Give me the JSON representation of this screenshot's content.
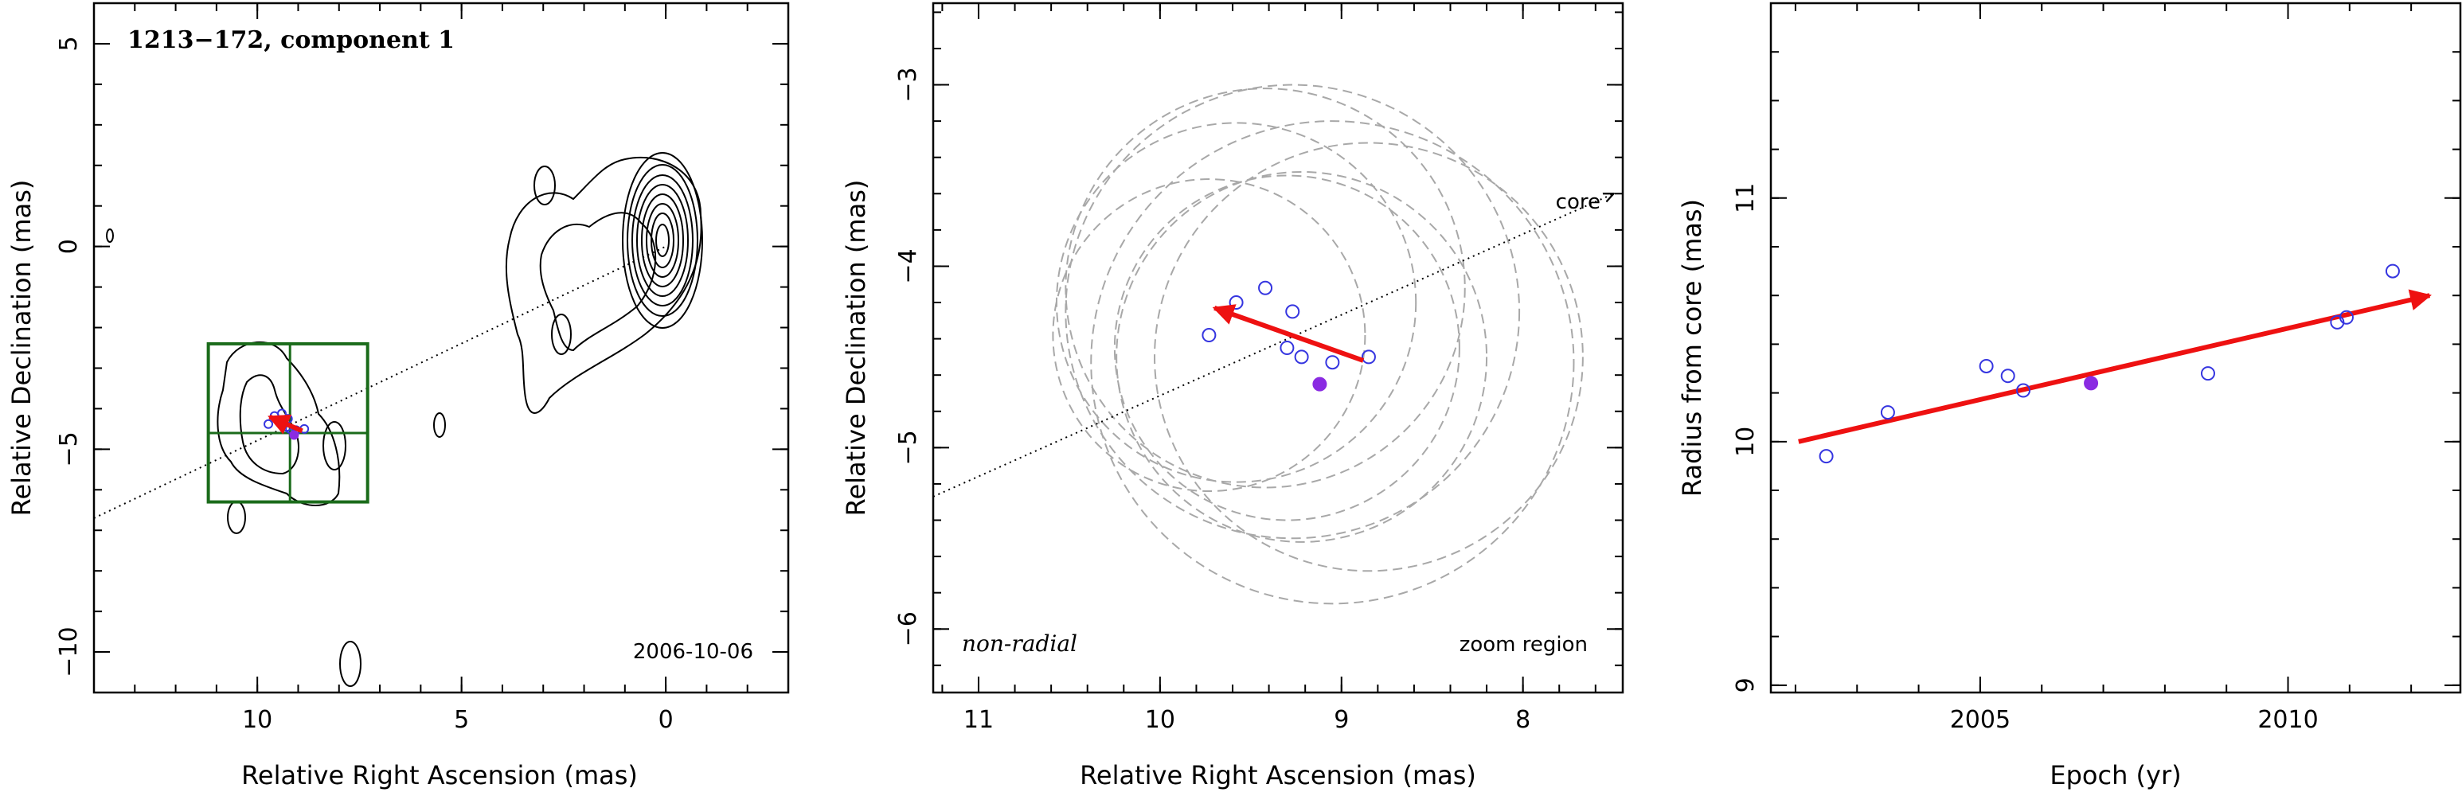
{
  "chart_data": [
    {
      "type": "scatter",
      "panel": "contour-map",
      "title": "1213−172, component 1",
      "date_label": "2006-10-06",
      "xlabel": "Relative Right Ascension (mas)",
      "ylabel": "Relative Declination (mas)",
      "xlim": [
        14,
        -3
      ],
      "ylim": [
        -11,
        6
      ],
      "xticks": [
        10,
        5,
        0
      ],
      "yticks": [
        5,
        0,
        -5,
        -10
      ],
      "core": [
        0,
        0
      ],
      "core_direction_line": {
        "from": [
          14,
          -6.7
        ],
        "to": [
          0,
          0
        ]
      },
      "zoom_box": {
        "x": [
          11.2,
          7.3
        ],
        "y": [
          -6.3,
          -2.4
        ],
        "cross": [
          9.2,
          -4.6
        ]
      },
      "points": [
        {
          "x": 9.73,
          "y": -4.38
        },
        {
          "x": 9.58,
          "y": -4.18
        },
        {
          "x": 9.4,
          "y": -4.12
        },
        {
          "x": 9.25,
          "y": -4.25
        },
        {
          "x": 9.2,
          "y": -4.5
        },
        {
          "x": 8.85,
          "y": -4.5
        },
        {
          "x": 9.05,
          "y": -4.53
        },
        {
          "x": 9.28,
          "y": -4.45
        }
      ],
      "highlight_point": {
        "x": 9.1,
        "y": -4.65
      },
      "motion_arrow": {
        "from": [
          8.9,
          -4.55
        ],
        "to": [
          9.7,
          -4.2
        ]
      },
      "colors": {
        "points": "#3535e0",
        "highlight": "#8a2be2",
        "arrow": "#ee1111",
        "box": "#1a6b1a"
      }
    },
    {
      "type": "scatter",
      "panel": "zoom-region",
      "region_label": "zoom region",
      "motion_label": "non-radial",
      "core_label": "core",
      "xlabel": "Relative Right Ascension (mas)",
      "ylabel": "Relative Declination (mas)",
      "xlim": [
        11.25,
        7.45
      ],
      "ylim": [
        -6.35,
        -2.55
      ],
      "xticks": [
        11,
        10,
        9,
        8
      ],
      "yticks": [
        -3,
        -4,
        -5,
        -6
      ],
      "points": [
        {
          "x": 9.73,
          "y": -4.38
        },
        {
          "x": 9.58,
          "y": -4.2
        },
        {
          "x": 9.42,
          "y": -4.12
        },
        {
          "x": 9.27,
          "y": -4.25
        },
        {
          "x": 9.22,
          "y": -4.5
        },
        {
          "x": 8.85,
          "y": -4.5
        },
        {
          "x": 9.05,
          "y": -4.53
        },
        {
          "x": 9.3,
          "y": -4.45
        }
      ],
      "highlight_point": {
        "x": 9.12,
        "y": -4.65
      },
      "motion_arrow": {
        "from": [
          8.88,
          -4.52
        ],
        "to": [
          9.7,
          -4.23
        ]
      },
      "core_direction_line": {
        "from": [
          11.25,
          -5.27
        ],
        "to": [
          7.5,
          -3.6
        ]
      },
      "error_circles": [
        {
          "x": 9.73,
          "y": -4.38,
          "r": 0.86
        },
        {
          "x": 9.58,
          "y": -4.2,
          "r": 0.99
        },
        {
          "x": 9.42,
          "y": -4.12,
          "r": 1.1
        },
        {
          "x": 9.27,
          "y": -4.25,
          "r": 1.25
        },
        {
          "x": 9.22,
          "y": -4.5,
          "r": 1.02
        },
        {
          "x": 8.85,
          "y": -4.5,
          "r": 1.18
        },
        {
          "x": 9.05,
          "y": -4.53,
          "r": 1.33
        },
        {
          "x": 9.3,
          "y": -4.45,
          "r": 0.95
        }
      ]
    },
    {
      "type": "scatter",
      "panel": "radius-vs-epoch",
      "xlabel": "Epoch (yr)",
      "ylabel": "Radius from core (mas)",
      "xlim": [
        2001.6,
        2012.8
      ],
      "ylim": [
        8.97,
        11.8
      ],
      "xticks": [
        2005,
        2010
      ],
      "yticks": [
        9,
        10,
        11
      ],
      "points": [
        {
          "x": 2002.5,
          "y": 9.94
        },
        {
          "x": 2003.5,
          "y": 10.12
        },
        {
          "x": 2005.1,
          "y": 10.31
        },
        {
          "x": 2005.45,
          "y": 10.27
        },
        {
          "x": 2005.7,
          "y": 10.21
        },
        {
          "x": 2008.7,
          "y": 10.28
        },
        {
          "x": 2010.8,
          "y": 10.49
        },
        {
          "x": 2010.95,
          "y": 10.51
        },
        {
          "x": 2011.7,
          "y": 10.7
        }
      ],
      "highlight_point": {
        "x": 2006.8,
        "y": 10.24
      },
      "fit_line": {
        "from": [
          2002.05,
          10.0
        ],
        "to": [
          2012.3,
          10.6
        ]
      }
    }
  ]
}
